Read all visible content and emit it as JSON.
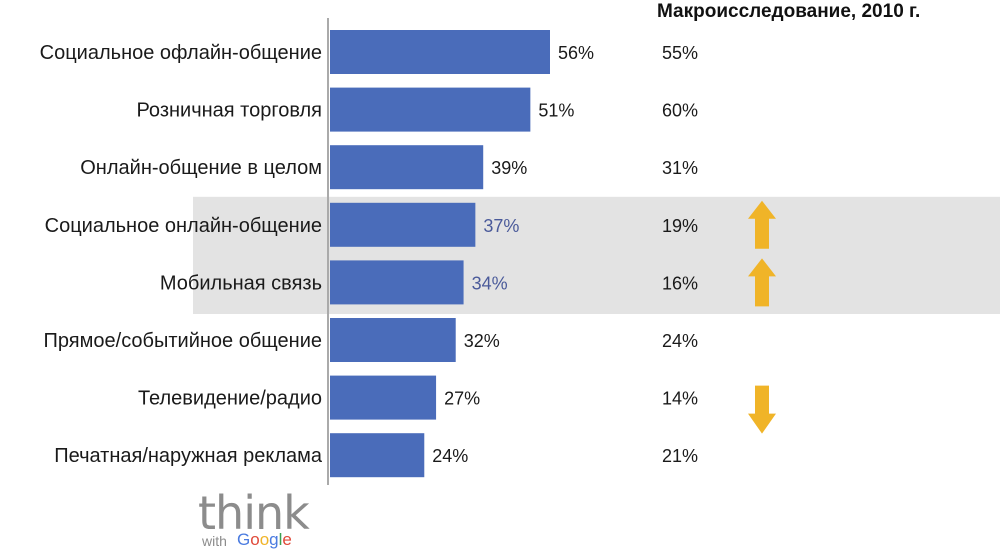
{
  "chart_data": {
    "type": "bar",
    "orientation": "horizontal",
    "categories": [
      "Социальное офлайн-общение",
      "Розничная торговля",
      "Онлайн-общение в целом",
      "Социальное онлайн-общение",
      "Мобильная связь",
      "Прямое/событийное общение",
      "Телевидение/радио",
      "Печатная/наружная реклама"
    ],
    "values": [
      56,
      51,
      39,
      37,
      34,
      32,
      27,
      24
    ],
    "value_labels": [
      "56%",
      "51%",
      "39%",
      "37%",
      "34%",
      "32%",
      "27%",
      "24%"
    ],
    "comparison": {
      "title": "Макроисследование, 2010 г.",
      "values": [
        55,
        60,
        31,
        19,
        16,
        24,
        14,
        21
      ],
      "labels": [
        "55%",
        "60%",
        "31%",
        "19%",
        "16%",
        "24%",
        "14%",
        "21%"
      ]
    },
    "highlighted": [
      3,
      4
    ],
    "trend_arrows": [
      {
        "category_index": 3,
        "direction": "up"
      },
      {
        "category_index": 4,
        "direction": "up"
      },
      {
        "category_index": 6,
        "direction": "down"
      }
    ],
    "xlim": [
      0,
      60
    ],
    "grid": false,
    "colors": {
      "bar": "#4a6cba",
      "highlight_band": "#e3e3e3",
      "arrow": "#f0b428",
      "axis": "#aaaaaa",
      "highlight_text": "#4a5a9a"
    }
  },
  "logo": {
    "think": "think",
    "with": "with",
    "google": [
      {
        "ch": "G",
        "color": "#4a7be0"
      },
      {
        "ch": "o",
        "color": "#e04a3a"
      },
      {
        "ch": "o",
        "color": "#f0b428"
      },
      {
        "ch": "g",
        "color": "#4a7be0"
      },
      {
        "ch": "l",
        "color": "#3aa050"
      },
      {
        "ch": "e",
        "color": "#e04a3a"
      }
    ]
  }
}
